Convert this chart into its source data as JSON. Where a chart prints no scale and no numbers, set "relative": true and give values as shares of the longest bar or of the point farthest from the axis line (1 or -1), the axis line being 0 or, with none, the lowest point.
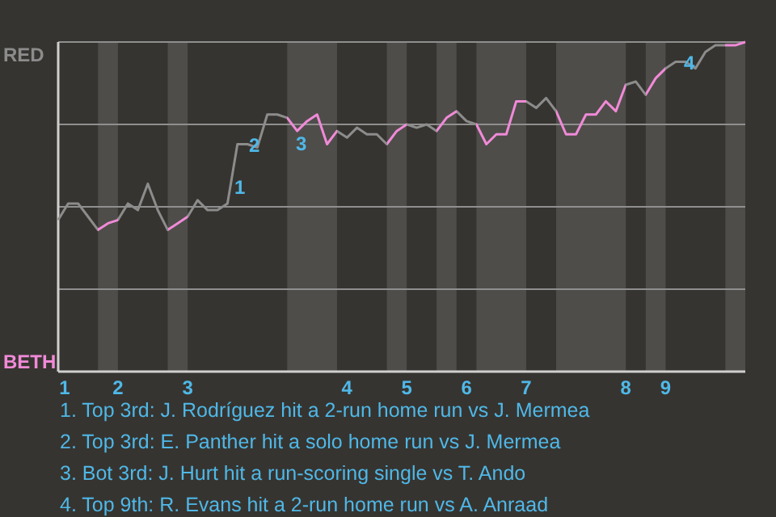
{
  "chart_data": {
    "type": "line",
    "categories": [
      "1",
      null,
      null,
      null,
      null,
      null,
      "2",
      null,
      null,
      null,
      null,
      null,
      null,
      "3",
      null,
      null,
      null,
      null,
      null,
      null,
      null,
      null,
      null,
      null,
      null,
      null,
      null,
      null,
      null,
      "4",
      null,
      null,
      null,
      null,
      null,
      "5",
      null,
      null,
      null,
      null,
      null,
      "6",
      null,
      null,
      null,
      null,
      null,
      "7",
      null,
      null,
      null,
      null,
      null,
      null,
      null,
      null,
      null,
      "8",
      null,
      null,
      null,
      "9",
      null,
      null,
      null,
      null,
      null,
      null,
      null,
      null
    ],
    "series": [
      {
        "color": "#8c8c8c",
        "values": [
          0.46,
          0.51,
          0.51,
          0.47,
          0.43,
          0.45,
          0.46,
          0.51,
          0.49,
          0.57,
          0.49,
          0.43,
          0.45,
          0.47,
          0.52,
          0.49,
          0.49,
          0.51,
          0.69,
          0.69,
          0.68,
          0.78,
          0.78,
          0.77,
          0.73,
          0.76,
          0.78,
          0.69,
          0.73,
          0.71,
          0.74,
          0.72,
          0.72,
          0.69,
          0.73,
          0.75,
          0.74,
          0.75,
          0.73,
          0.77,
          0.79,
          0.76,
          0.75,
          0.69,
          0.72,
          0.72,
          0.82,
          0.82,
          0.8,
          0.83,
          0.79,
          0.72,
          0.72,
          0.78,
          0.78,
          0.82,
          0.79,
          0.87,
          0.88,
          0.84,
          0.89,
          0.92,
          0.94,
          0.94,
          0.92,
          0.97,
          0.99,
          0.99,
          0.99,
          1.0
        ],
        "colors": [
          "#8c8c8c",
          "#8c8c8c",
          "#8c8c8c",
          "#8c8c8c",
          "#f08ad8",
          "#f08ad8",
          "#8c8c8c",
          "#8c8c8c",
          "#8c8c8c",
          "#8c8c8c",
          "#8c8c8c",
          "#f08ad8",
          "#f08ad8",
          "#8c8c8c",
          "#8c8c8c",
          "#8c8c8c",
          "#8c8c8c",
          "#8c8c8c",
          "#8c8c8c",
          "#8c8c8c",
          "#8c8c8c",
          "#8c8c8c",
          "#8c8c8c",
          "#f08ad8",
          "#f08ad8",
          "#f08ad8",
          "#f08ad8",
          "#f08ad8",
          "#8c8c8c",
          "#8c8c8c",
          "#8c8c8c",
          "#8c8c8c",
          "#8c8c8c",
          "#f08ad8",
          "#f08ad8",
          "#8c8c8c",
          "#8c8c8c",
          "#8c8c8c",
          "#f08ad8",
          "#f08ad8",
          "#8c8c8c",
          "#8c8c8c",
          "#f08ad8",
          "#f08ad8",
          "#f08ad8",
          "#f08ad8",
          "#f08ad8",
          "#8c8c8c",
          "#8c8c8c",
          "#8c8c8c",
          "#f08ad8",
          "#f08ad8",
          "#f08ad8",
          "#f08ad8",
          "#f08ad8",
          "#f08ad8",
          "#f08ad8",
          "#8c8c8c",
          "#8c8c8c",
          "#f08ad8",
          "#f08ad8",
          "#8c8c8c",
          "#8c8c8c",
          "#8c8c8c",
          "#8c8c8c",
          "#8c8c8c",
          "#8c8c8c",
          "#f08ad8",
          "#f08ad8",
          "#f08ad8"
        ]
      }
    ],
    "relative": true,
    "grid": "y",
    "annotations": [
      "RED",
      "BETH",
      "1",
      "2",
      "3",
      "4",
      "1. Top 3rd: J. Rodríguez hit a 2-run home run vs J. Mermea",
      "2. Top 3rd: E. Panther hit a solo home run vs J. Mermea",
      "3. Bot 3rd: J. Hurt hit a run-scoring single vs T. Ando",
      "4. Top 9th: R. Evans hit a 2-run home run vs A. Anraad"
    ]
  }
}
